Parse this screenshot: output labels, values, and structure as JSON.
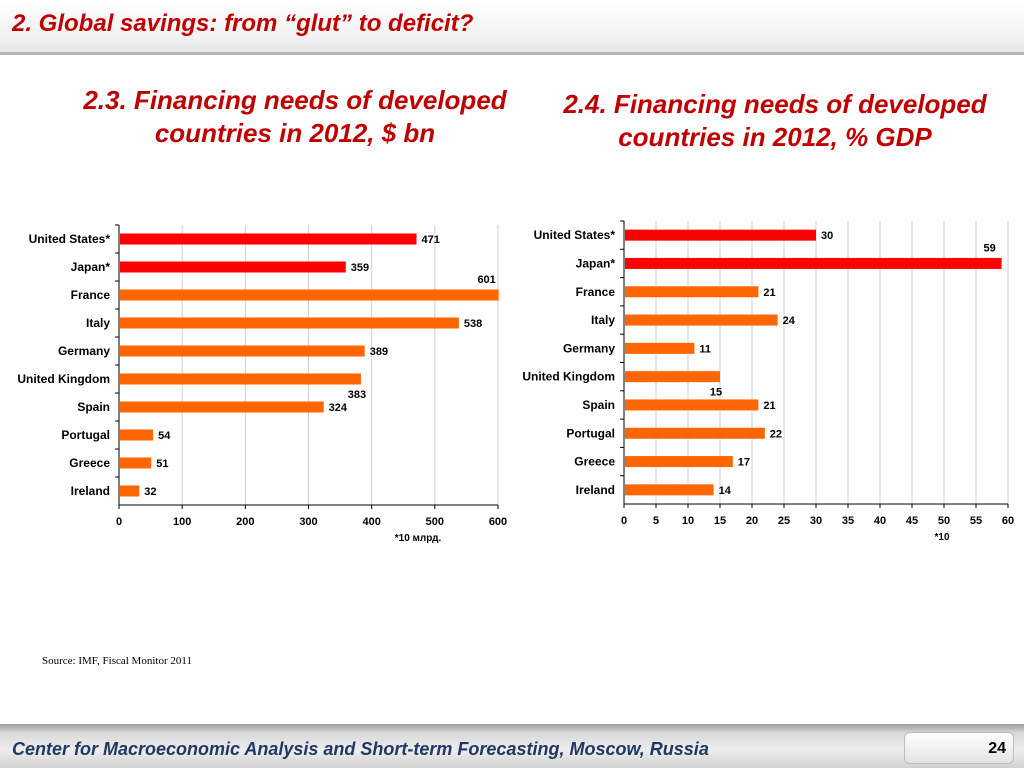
{
  "header": {
    "title": "2. Global savings: from “glut” to deficit?"
  },
  "colors": {
    "title_red": "#c00000",
    "bar_red": "#ff0000",
    "bar_orange": "#ff6600",
    "footer_text": "#1f3864"
  },
  "chart_data": [
    {
      "type": "bar",
      "orientation": "horizontal",
      "title": "2.3. Financing needs of developed countries in 2012, $ bn",
      "categories": [
        "United States*",
        "Japan*",
        "France",
        "Italy",
        "Germany",
        "United Kingdom",
        "Spain",
        "Portugal",
        "Greece",
        "Ireland"
      ],
      "values": [
        471,
        359,
        601,
        538,
        389,
        383,
        324,
        54,
        51,
        32
      ],
      "bar_colors": [
        "#ff0000",
        "#ff0000",
        "#ff6600",
        "#ff6600",
        "#ff6600",
        "#ff6600",
        "#ff6600",
        "#ff6600",
        "#ff6600",
        "#ff6600"
      ],
      "xlim": [
        0,
        600
      ],
      "xticks": [
        0,
        100,
        200,
        300,
        400,
        500,
        600
      ],
      "footnote": "*10 млрд.",
      "grid": true
    },
    {
      "type": "bar",
      "orientation": "horizontal",
      "title": "2.4. Financing needs of developed countries in 2012, % GDP",
      "categories": [
        "United States*",
        "Japan*",
        "France",
        "Italy",
        "Germany",
        "United Kingdom",
        "Spain",
        "Portugal",
        "Greece",
        "Ireland"
      ],
      "values": [
        30,
        59,
        21,
        24,
        11,
        15,
        21,
        22,
        17,
        14
      ],
      "bar_colors": [
        "#ff0000",
        "#ff0000",
        "#ff6600",
        "#ff6600",
        "#ff6600",
        "#ff6600",
        "#ff6600",
        "#ff6600",
        "#ff6600",
        "#ff6600"
      ],
      "xlim": [
        0,
        60
      ],
      "xticks": [
        0,
        5,
        10,
        15,
        20,
        25,
        30,
        35,
        40,
        45,
        50,
        55,
        60
      ],
      "footnote": "*10",
      "grid": true
    }
  ],
  "source": "Source: IMF, Fiscal Monitor 2011",
  "footer": {
    "text": "Center for Macroeconomic Analysis and Short-term Forecasting, Moscow, Russia",
    "page": "24"
  }
}
